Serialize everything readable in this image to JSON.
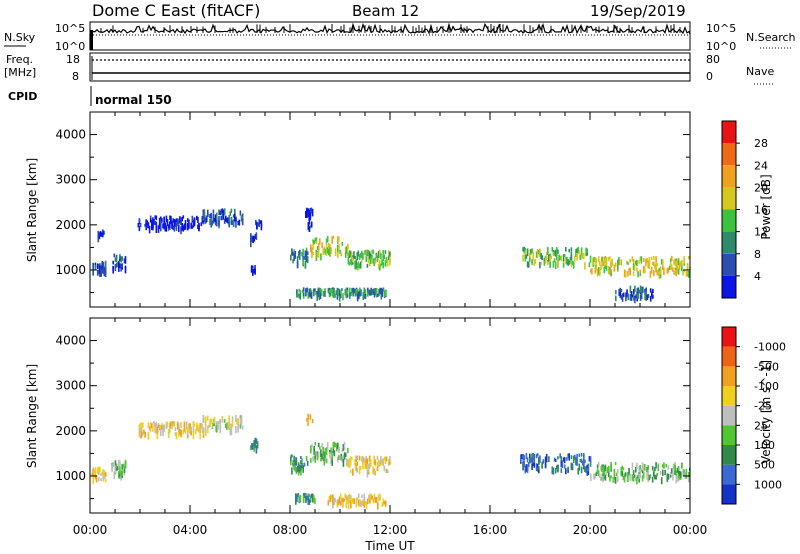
{
  "header": {
    "station": "Dome C East (fitACF)",
    "beam": "Beam 12",
    "date": "19/Sep/2019"
  },
  "noise_panel": {
    "left_label": "N.Sky",
    "right_label": "N.Search",
    "tick_top": "10^5",
    "tick_bottom": "10^0"
  },
  "freq_panel": {
    "left_label_line1": "Freq.",
    "left_label_line2": "[MHz]",
    "right_label": "Nave",
    "left_ticks": [
      "18",
      "8"
    ],
    "right_ticks": [
      "80",
      "0"
    ]
  },
  "cpid": {
    "label": "CPID",
    "value": "normal 150"
  },
  "chart_data": [
    {
      "type": "heatmap",
      "quantity": "Power",
      "ylabel": "Slant Range [km]",
      "colorbar_label": "Power [dB]",
      "xlabel": "Time UT",
      "x_ticks": [
        "00:00",
        "04:00",
        "08:00",
        "12:00",
        "16:00",
        "20:00",
        "00:00"
      ],
      "y_ticks": [
        1000,
        2000,
        3000,
        4000
      ],
      "xlim_hours": [
        0,
        24
      ],
      "ylim_km": [
        180,
        4500
      ],
      "colorbar_ticks": [
        "4",
        "8",
        "12",
        "16",
        "20",
        "24",
        "28"
      ],
      "colorbar_colors": [
        "#0a14e6",
        "#2a4fb0",
        "#2e8b6a",
        "#3cc23c",
        "#d4c81e",
        "#f0a21e",
        "#ee6a14",
        "#e81414"
      ],
      "echo_regions": [
        {
          "t0": 0.05,
          "t1": 0.6,
          "r0": 880,
          "r1": 1150,
          "level": 1
        },
        {
          "t0": 0.3,
          "t1": 0.55,
          "r0": 1650,
          "r1": 1850,
          "level": 0
        },
        {
          "t0": 0.85,
          "t1": 1.4,
          "r0": 1000,
          "r1": 1300,
          "level": 1
        },
        {
          "t0": 1.9,
          "t1": 4.6,
          "r0": 1900,
          "r1": 2150,
          "level": 0
        },
        {
          "t0": 4.5,
          "t1": 6.1,
          "r0": 2000,
          "r1": 2300,
          "level": 1
        },
        {
          "t0": 6.4,
          "t1": 6.7,
          "r0": 1600,
          "r1": 1800,
          "level": 1
        },
        {
          "t0": 6.6,
          "t1": 6.9,
          "r0": 1950,
          "r1": 2100,
          "level": 0
        },
        {
          "t0": 6.3,
          "t1": 6.6,
          "r0": 950,
          "r1": 1050,
          "level": 0
        },
        {
          "t0": 8.6,
          "t1": 8.9,
          "r0": 2180,
          "r1": 2320,
          "level": 0
        },
        {
          "t0": 8.7,
          "t1": 8.85,
          "r0": 1900,
          "r1": 2050,
          "level": 1
        },
        {
          "t0": 8.0,
          "t1": 8.7,
          "r0": 1100,
          "r1": 1450,
          "level": 2
        },
        {
          "t0": 8.8,
          "t1": 10.3,
          "r0": 1300,
          "r1": 1700,
          "level": 4
        },
        {
          "t0": 10.3,
          "t1": 12.0,
          "r0": 1050,
          "r1": 1400,
          "level": 3
        },
        {
          "t0": 8.2,
          "t1": 11.8,
          "r0": 400,
          "r1": 550,
          "level": 2
        },
        {
          "t0": 17.2,
          "t1": 20.0,
          "r0": 1100,
          "r1": 1450,
          "level": 3
        },
        {
          "t0": 20.0,
          "t1": 24.0,
          "r0": 900,
          "r1": 1250,
          "level": 4
        },
        {
          "t0": 21.0,
          "t1": 22.5,
          "r0": 350,
          "r1": 600,
          "level": 1
        }
      ]
    },
    {
      "type": "heatmap",
      "quantity": "Velocity",
      "ylabel": "Slant Range [km]",
      "colorbar_label": "Velocity [m s^-1]",
      "xlabel": "Time UT",
      "x_ticks": [
        "00:00",
        "04:00",
        "08:00",
        "12:00",
        "16:00",
        "20:00",
        "00:00"
      ],
      "y_ticks": [
        1000,
        2000,
        3000,
        4000
      ],
      "xlim_hours": [
        0,
        24
      ],
      "ylim_km": [
        180,
        4500
      ],
      "colorbar_ticks": [
        "1000",
        "500",
        "100",
        "25",
        "-25",
        "-100",
        "-500",
        "-1000"
      ],
      "colorbar_colors": [
        "#1432c8",
        "#3a6ad2",
        "#2e8b4a",
        "#52c632",
        "#bebebe",
        "#f0d01e",
        "#f0a01e",
        "#ee6414",
        "#e81414"
      ],
      "echo_regions": [
        {
          "t0": 0.05,
          "t1": 0.6,
          "r0": 880,
          "r1": 1150,
          "level": 5
        },
        {
          "t0": 0.85,
          "t1": 1.4,
          "r0": 1000,
          "r1": 1300,
          "level": 3
        },
        {
          "t0": 1.9,
          "t1": 4.6,
          "r0": 1900,
          "r1": 2150,
          "level": 5
        },
        {
          "t0": 4.5,
          "t1": 6.1,
          "r0": 2000,
          "r1": 2300,
          "level": 4
        },
        {
          "t0": 6.4,
          "t1": 6.7,
          "r0": 1600,
          "r1": 1800,
          "level": 2
        },
        {
          "t0": 8.6,
          "t1": 8.9,
          "r0": 2180,
          "r1": 2320,
          "level": 6
        },
        {
          "t0": 8.0,
          "t1": 8.7,
          "r0": 1100,
          "r1": 1450,
          "level": 2
        },
        {
          "t0": 8.8,
          "t1": 10.3,
          "r0": 1300,
          "r1": 1700,
          "level": 3
        },
        {
          "t0": 10.3,
          "t1": 12.0,
          "r0": 1050,
          "r1": 1400,
          "level": 5
        },
        {
          "t0": 8.2,
          "t1": 9.0,
          "r0": 420,
          "r1": 560,
          "level": 2
        },
        {
          "t0": 9.5,
          "t1": 11.8,
          "r0": 350,
          "r1": 550,
          "level": 5
        },
        {
          "t0": 17.2,
          "t1": 20.0,
          "r0": 1100,
          "r1": 1450,
          "level": 1
        },
        {
          "t0": 20.0,
          "t1": 24.0,
          "r0": 900,
          "r1": 1250,
          "level": 3
        }
      ]
    }
  ]
}
